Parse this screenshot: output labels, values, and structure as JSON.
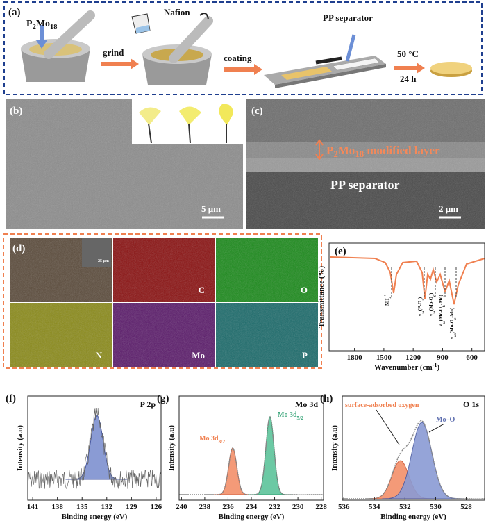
{
  "panel_a": {
    "tag": "(a)",
    "compound": [
      {
        "t": "P"
      },
      {
        "t": "2",
        "sub": true
      },
      {
        "t": "Mo"
      },
      {
        "t": "18",
        "sub": true
      }
    ],
    "nafion": "Nafion",
    "grind": "grind",
    "coating": "coating",
    "separator": "PP separator",
    "temp": "50 °C",
    "time": "24 h"
  },
  "panel_b": {
    "tag": "(b)",
    "scale": "5 μm"
  },
  "panel_c": {
    "tag": "(c)",
    "layer": [
      {
        "t": "P"
      },
      {
        "t": "2",
        "sub": true
      },
      {
        "t": "Mo"
      },
      {
        "t": "18",
        "sub": true
      },
      {
        "t": " modified layer"
      }
    ],
    "separator": "PP separator",
    "scale": "2 μm"
  },
  "panel_d": {
    "tag": "(d)",
    "inset_scale": "25 μm",
    "elements": [
      "C",
      "O",
      "N",
      "Mo",
      "P"
    ]
  },
  "plots": [
    {
      "tag": "(e)",
      "ylabel": "Transmittance (%)",
      "xlabel": [
        {
          "t": "Wavenumber (cm"
        },
        {
          "t": "-1",
          "sup": true
        },
        {
          "t": ")"
        }
      ],
      "xlim": [
        2060,
        470
      ],
      "xticks": [
        1800,
        1500,
        1200,
        900,
        600
      ],
      "annotations": [
        [
          {
            "t": "NH"
          },
          {
            "t": "4",
            "sub": true
          },
          {
            "t": "+",
            "sup": true
          }
        ],
        [
          {
            "t": "ν"
          },
          {
            "t": "as",
            "sub": true
          },
          {
            "t": "(P-O"
          },
          {
            "t": "a",
            "sub": true
          },
          {
            "t": ")"
          }
        ],
        [
          {
            "t": "ν"
          },
          {
            "t": "as",
            "sub": true
          },
          {
            "t": "(Mo-O"
          },
          {
            "t": "d",
            "sub": true
          },
          {
            "t": ")"
          }
        ],
        [
          {
            "t": "ν"
          },
          {
            "t": "as",
            "sub": true
          },
          {
            "t": "(Mo-O"
          },
          {
            "t": "b",
            "sub": true
          },
          {
            "t": "-Mo)"
          }
        ],
        [
          {
            "t": "ν"
          },
          {
            "t": "as",
            "sub": true
          },
          {
            "t": "(Mo-O"
          },
          {
            "t": "c",
            "sub": true
          },
          {
            "t": "-Mo)"
          }
        ]
      ]
    },
    {
      "tag": "(f)",
      "title": "P 2p",
      "ylabel": "Intensity (a.u)",
      "xlabel": [
        {
          "t": "Binding energy (eV)"
        }
      ],
      "xlim": [
        141.6,
        125.4
      ],
      "xticks": [
        141,
        138,
        135,
        132,
        129,
        126
      ]
    },
    {
      "tag": "(g)",
      "title": "Mo 3d",
      "ylabel": "Intensity (a.u)",
      "xlabel": [
        {
          "t": "Binding energy (eV)"
        }
      ],
      "xlim": [
        240.2,
        227.8
      ],
      "xticks": [
        240,
        238,
        236,
        234,
        232,
        230,
        228
      ],
      "annotations": [
        [
          {
            "t": "Mo 3d"
          },
          {
            "t": "3/2",
            "sub": true
          }
        ],
        [
          {
            "t": "Mo 3d"
          },
          {
            "t": "5/2",
            "sub": true
          }
        ]
      ]
    },
    {
      "tag": "(h)",
      "title": "O 1s",
      "ylabel": "Intensity (a.u)",
      "xlabel": [
        {
          "t": "Binding energy (eV)"
        }
      ],
      "xlim": [
        536.1,
        526.8
      ],
      "xticks": [
        536,
        534,
        532,
        530,
        528
      ],
      "annotations": [
        [
          {
            "t": "surface-adsorbed oxygen"
          }
        ],
        [
          {
            "t": "Mo–O"
          }
        ]
      ]
    }
  ]
}
